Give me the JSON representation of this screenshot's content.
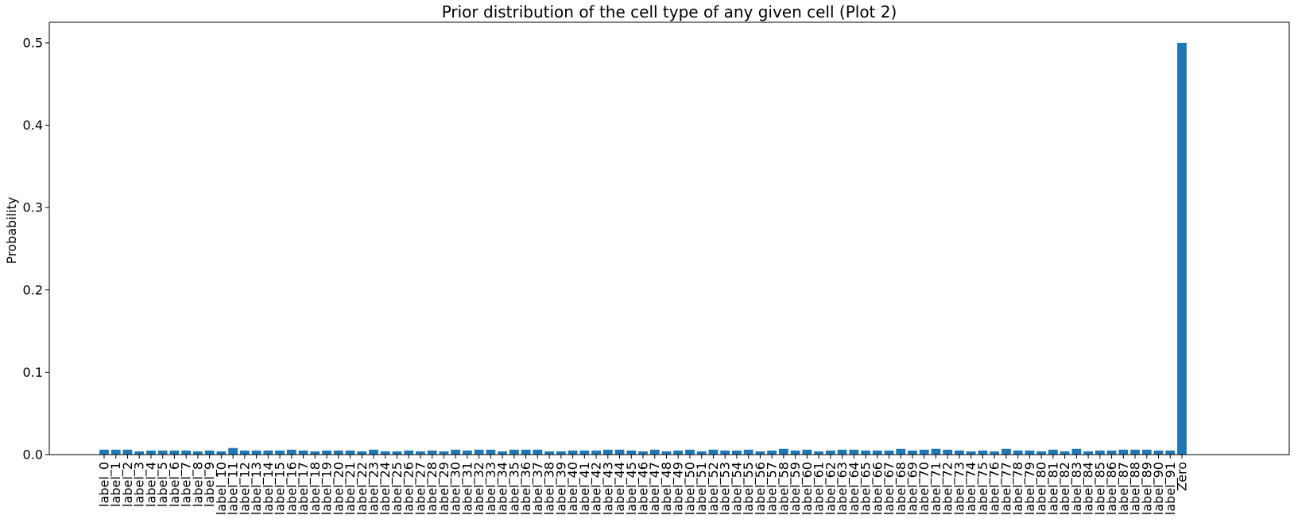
{
  "chart_data": {
    "type": "bar",
    "title": "Prior distribution of the cell type of any given cell (Plot 2)",
    "xlabel": "",
    "ylabel": "Probability",
    "ylim": [
      0,
      0.525
    ],
    "yticks": [
      0.0,
      0.1,
      0.2,
      0.3,
      0.4,
      0.5
    ],
    "ytick_labels": [
      "0.0",
      "0.1",
      "0.2",
      "0.3",
      "0.4",
      "0.5"
    ],
    "grid": false,
    "bar_color": "#1f77b4",
    "categories": [
      "label_0",
      "label_1",
      "label_2",
      "label_3",
      "label_4",
      "label_5",
      "label_6",
      "label_7",
      "label_8",
      "label_9",
      "label_10",
      "label_11",
      "label_12",
      "label_13",
      "label_14",
      "label_15",
      "label_16",
      "label_17",
      "label_18",
      "label_19",
      "label_20",
      "label_21",
      "label_22",
      "label_23",
      "label_24",
      "label_25",
      "label_26",
      "label_27",
      "label_28",
      "label_29",
      "label_30",
      "label_31",
      "label_32",
      "label_33",
      "label_34",
      "label_35",
      "label_36",
      "label_37",
      "label_38",
      "label_39",
      "label_40",
      "label_41",
      "label_42",
      "label_43",
      "label_44",
      "label_45",
      "label_46",
      "label_47",
      "label_48",
      "label_49",
      "label_50",
      "label_51",
      "label_52",
      "label_53",
      "label_54",
      "label_55",
      "label_56",
      "label_57",
      "label_58",
      "label_59",
      "label_60",
      "label_61",
      "label_62",
      "label_63",
      "label_64",
      "label_65",
      "label_66",
      "label_67",
      "label_68",
      "label_69",
      "label_70",
      "label_71",
      "label_72",
      "label_73",
      "label_74",
      "label_75",
      "label_76",
      "label_77",
      "label_78",
      "label_79",
      "label_80",
      "label_81",
      "label_82",
      "label_83",
      "label_84",
      "label_85",
      "label_86",
      "label_87",
      "label_88",
      "label_89",
      "label_90",
      "label_91",
      "Zero"
    ],
    "values": [
      0.006,
      0.006,
      0.006,
      0.004,
      0.005,
      0.005,
      0.005,
      0.005,
      0.004,
      0.005,
      0.004,
      0.008,
      0.005,
      0.005,
      0.005,
      0.005,
      0.006,
      0.005,
      0.004,
      0.005,
      0.005,
      0.005,
      0.004,
      0.006,
      0.004,
      0.004,
      0.005,
      0.004,
      0.005,
      0.004,
      0.006,
      0.005,
      0.006,
      0.006,
      0.004,
      0.006,
      0.006,
      0.006,
      0.004,
      0.004,
      0.005,
      0.005,
      0.005,
      0.006,
      0.006,
      0.005,
      0.004,
      0.006,
      0.004,
      0.005,
      0.006,
      0.004,
      0.006,
      0.005,
      0.005,
      0.006,
      0.004,
      0.005,
      0.007,
      0.005,
      0.006,
      0.004,
      0.005,
      0.006,
      0.006,
      0.005,
      0.005,
      0.005,
      0.007,
      0.005,
      0.006,
      0.007,
      0.006,
      0.005,
      0.004,
      0.005,
      0.004,
      0.007,
      0.005,
      0.005,
      0.004,
      0.006,
      0.004,
      0.007,
      0.004,
      0.005,
      0.005,
      0.006,
      0.006,
      0.006,
      0.005,
      0.005,
      0.5
    ]
  }
}
